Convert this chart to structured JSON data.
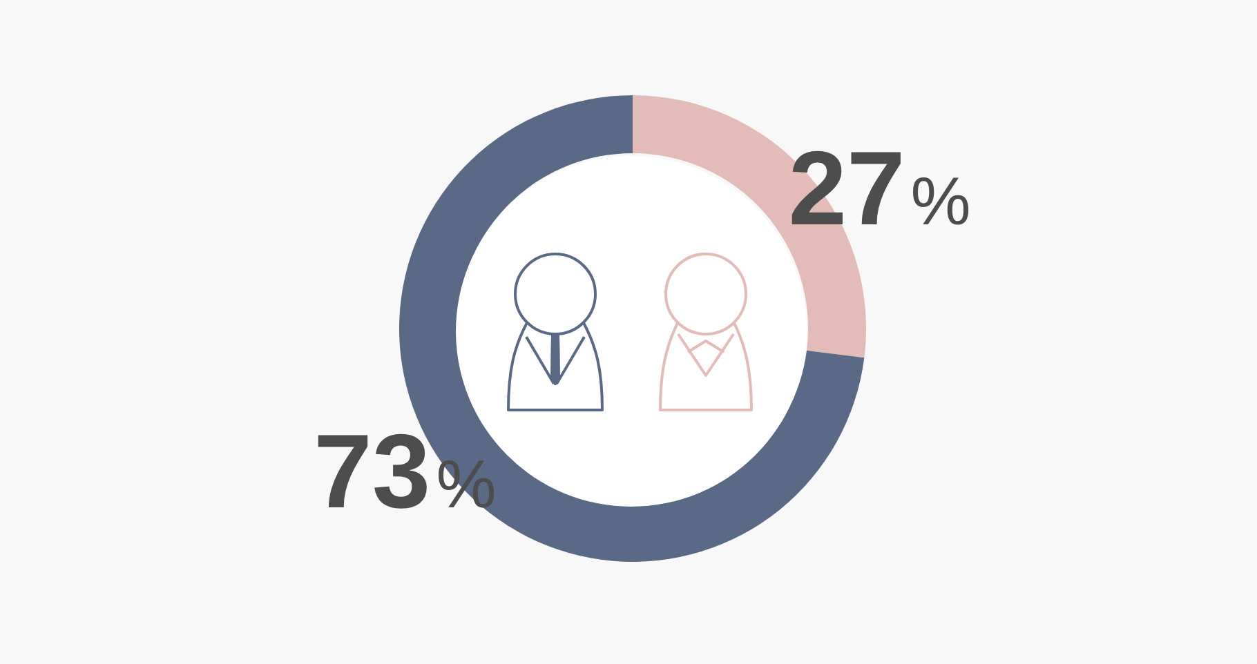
{
  "chart_data": {
    "type": "donut",
    "categories": [
      null,
      null
    ],
    "values": [
      27,
      73
    ],
    "colors": [
      "#e3bbb8",
      "#5a6985"
    ],
    "value_labels": [
      "27%",
      "73%"
    ]
  }
}
